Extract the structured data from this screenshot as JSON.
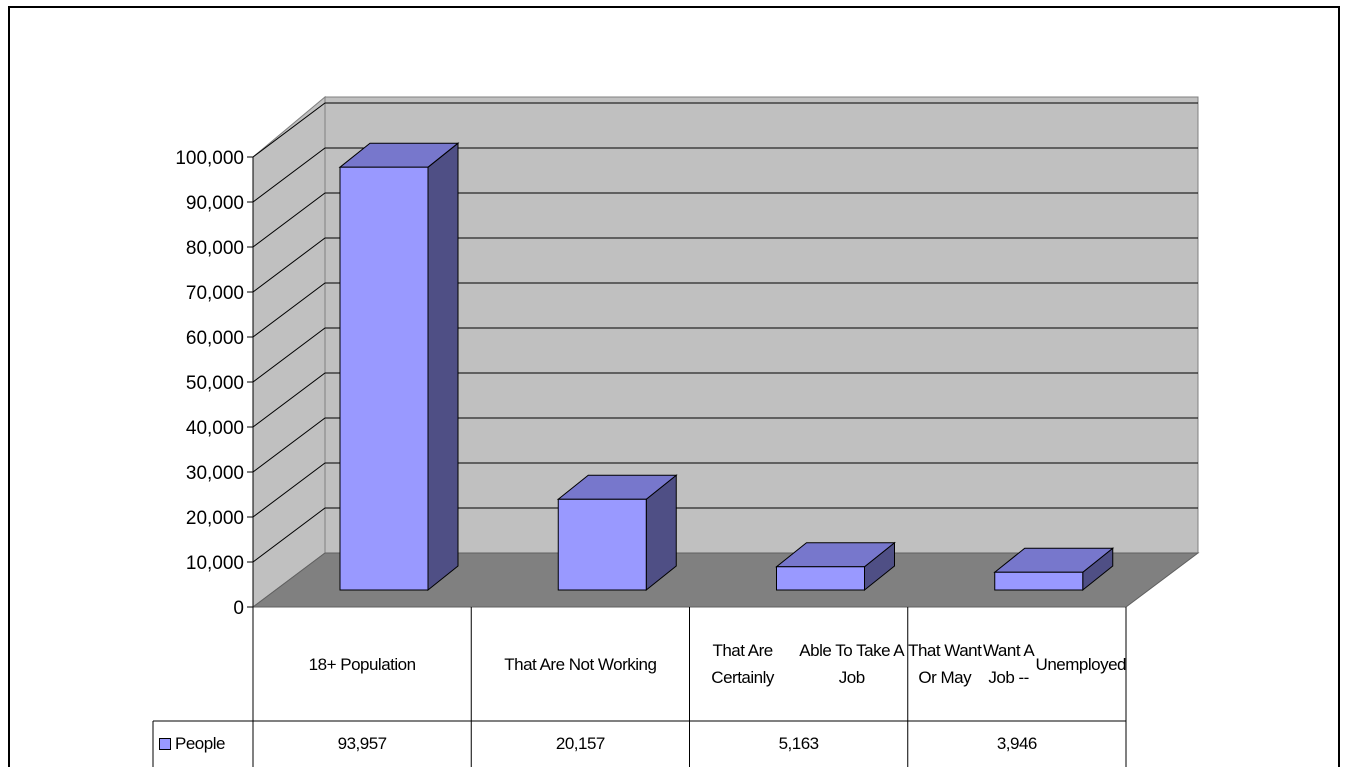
{
  "chart_data": {
    "type": "bar",
    "style": "3d-column-with-data-table",
    "categories": [
      "18+ Population",
      "That Are Not Working",
      "That Are Certainly Able To Take A Job",
      "That Want Or May Want A Job -- Unemployed"
    ],
    "category_lines": [
      [
        "18+ Population"
      ],
      [
        "That Are Not Working"
      ],
      [
        "That Are Certainly",
        "Able To Take A Job"
      ],
      [
        "That Want Or May",
        "Want A Job --",
        "Unemployed"
      ]
    ],
    "series": [
      {
        "name": "People",
        "values": [
          93957,
          20157,
          5163,
          3946
        ],
        "value_labels": [
          "93,957",
          "20,157",
          "5,163",
          "3,946"
        ]
      }
    ],
    "ylim": [
      0,
      100000
    ],
    "yticks": [
      0,
      10000,
      20000,
      30000,
      40000,
      50000,
      60000,
      70000,
      80000,
      90000,
      100000
    ],
    "ytick_labels": [
      "0",
      "10,000",
      "20,000",
      "30,000",
      "40,000",
      "50,000",
      "60,000",
      "70,000",
      "80,000",
      "90,000",
      "100,000"
    ],
    "grid": true,
    "legend": "data-table-left",
    "colors": {
      "bar_front": "#9999ff",
      "bar_top": "#7777cc",
      "bar_side": "#4f4f85",
      "wall": "#c0c0c0",
      "floor": "#808080",
      "gridline": "#000000"
    }
  }
}
